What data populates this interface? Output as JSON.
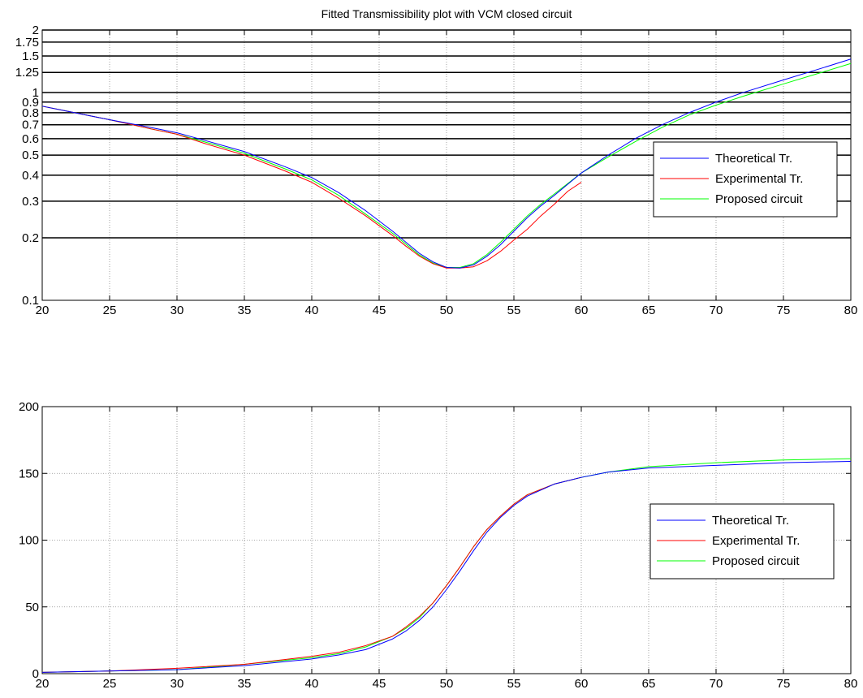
{
  "chart_data": [
    {
      "type": "line",
      "title": "Fitted Transmissibility plot with VCM closed circuit",
      "xlabel": "",
      "ylabel": "",
      "yscale": "log",
      "xlim": [
        20,
        80
      ],
      "ylim": [
        0.1,
        2
      ],
      "x_ticks": [
        20,
        25,
        30,
        35,
        40,
        45,
        50,
        55,
        60,
        65,
        70,
        75,
        80
      ],
      "y_ticks": [
        0.1,
        0.2,
        0.3,
        0.4,
        0.5,
        0.6,
        0.7,
        0.8,
        0.9,
        1,
        1.25,
        1.5,
        1.75,
        2
      ],
      "y_tick_labels": [
        "0.1",
        "0.2",
        "0.3",
        "0.4",
        "0.5",
        "0.6",
        "0.7",
        "0.8",
        "0.9",
        "1",
        "1.25",
        "1.5",
        "1.75",
        "2"
      ],
      "grid": true,
      "legend_position": "right",
      "series": [
        {
          "name": "Theoretical Tr.",
          "color": "#0000ff",
          "x": [
            20,
            22,
            25,
            28,
            30,
            32,
            35,
            38,
            40,
            42,
            44,
            46,
            47,
            48,
            49,
            50,
            51,
            52,
            53,
            54,
            55,
            56,
            57,
            58,
            60,
            62,
            64,
            66,
            68,
            70,
            72,
            75,
            78,
            80
          ],
          "y": [
            0.86,
            0.81,
            0.74,
            0.68,
            0.64,
            0.59,
            0.52,
            0.44,
            0.39,
            0.33,
            0.27,
            0.215,
            0.19,
            0.168,
            0.153,
            0.144,
            0.143,
            0.148,
            0.163,
            0.185,
            0.215,
            0.25,
            0.285,
            0.32,
            0.41,
            0.5,
            0.6,
            0.7,
            0.8,
            0.9,
            1.0,
            1.15,
            1.32,
            1.45
          ]
        },
        {
          "name": "Experimental Tr.",
          "color": "#ff0000",
          "x": [
            20,
            22,
            25,
            28,
            30,
            32,
            35,
            38,
            40,
            42,
            44,
            46,
            47,
            48,
            49,
            50,
            51,
            52,
            53,
            54,
            55,
            56,
            57,
            58,
            59,
            60
          ],
          "y": [
            0.86,
            0.81,
            0.74,
            0.67,
            0.63,
            0.57,
            0.5,
            0.42,
            0.37,
            0.31,
            0.255,
            0.205,
            0.182,
            0.163,
            0.15,
            0.143,
            0.143,
            0.145,
            0.155,
            0.172,
            0.195,
            0.22,
            0.255,
            0.29,
            0.335,
            0.37
          ]
        },
        {
          "name": "Proposed circuit",
          "color": "#00ff00",
          "x": [
            20,
            22,
            25,
            28,
            30,
            32,
            35,
            38,
            40,
            42,
            44,
            46,
            47,
            48,
            49,
            50,
            51,
            52,
            53,
            54,
            55,
            56,
            57,
            58,
            60,
            62,
            64,
            66,
            68,
            70,
            72,
            75,
            78,
            80
          ],
          "y": [
            0.86,
            0.81,
            0.74,
            0.67,
            0.63,
            0.58,
            0.51,
            0.43,
            0.38,
            0.32,
            0.26,
            0.21,
            0.186,
            0.165,
            0.151,
            0.144,
            0.144,
            0.15,
            0.166,
            0.19,
            0.22,
            0.255,
            0.29,
            0.325,
            0.41,
            0.49,
            0.58,
            0.68,
            0.78,
            0.87,
            0.96,
            1.1,
            1.26,
            1.38
          ]
        }
      ]
    },
    {
      "type": "line",
      "title": "",
      "xlabel": "",
      "ylabel": "",
      "yscale": "linear",
      "xlim": [
        20,
        80
      ],
      "ylim": [
        0,
        200
      ],
      "x_ticks": [
        20,
        25,
        30,
        35,
        40,
        45,
        50,
        55,
        60,
        65,
        70,
        75,
        80
      ],
      "y_ticks": [
        0,
        50,
        100,
        150,
        200
      ],
      "y_tick_labels": [
        "0",
        "50",
        "100",
        "150",
        "200"
      ],
      "grid": true,
      "legend_position": "right",
      "series": [
        {
          "name": "Theoretical Tr.",
          "color": "#0000ff",
          "x": [
            20,
            25,
            30,
            35,
            40,
            42,
            44,
            46,
            47,
            48,
            49,
            50,
            51,
            52,
            53,
            54,
            55,
            56,
            58,
            60,
            62,
            65,
            70,
            75,
            80
          ],
          "y": [
            1,
            2,
            3,
            6,
            11,
            14,
            18,
            26,
            32,
            40,
            50,
            63,
            77,
            92,
            106,
            117,
            126,
            133,
            142,
            147,
            151,
            154,
            156,
            158,
            159
          ]
        },
        {
          "name": "Experimental Tr.",
          "color": "#ff0000",
          "x": [
            20,
            25,
            30,
            35,
            40,
            42,
            44,
            46,
            47,
            48,
            49,
            50,
            51,
            52,
            53,
            54,
            55,
            56,
            58,
            60
          ],
          "y": [
            1,
            2,
            4,
            7,
            13,
            16,
            21,
            28,
            35,
            43,
            53,
            66,
            80,
            95,
            108,
            118,
            127,
            134,
            142,
            147
          ]
        },
        {
          "name": "Proposed circuit",
          "color": "#00ff00",
          "x": [
            20,
            25,
            30,
            35,
            40,
            42,
            44,
            46,
            47,
            48,
            49,
            50,
            51,
            52,
            53,
            54,
            55,
            56,
            58,
            60,
            62,
            65,
            70,
            75,
            80
          ],
          "y": [
            1,
            2,
            3,
            7,
            12,
            15,
            20,
            28,
            34,
            42,
            53,
            66,
            80,
            95,
            108,
            118,
            127,
            134,
            142,
            147,
            151,
            155,
            158,
            160,
            161
          ]
        }
      ]
    }
  ]
}
